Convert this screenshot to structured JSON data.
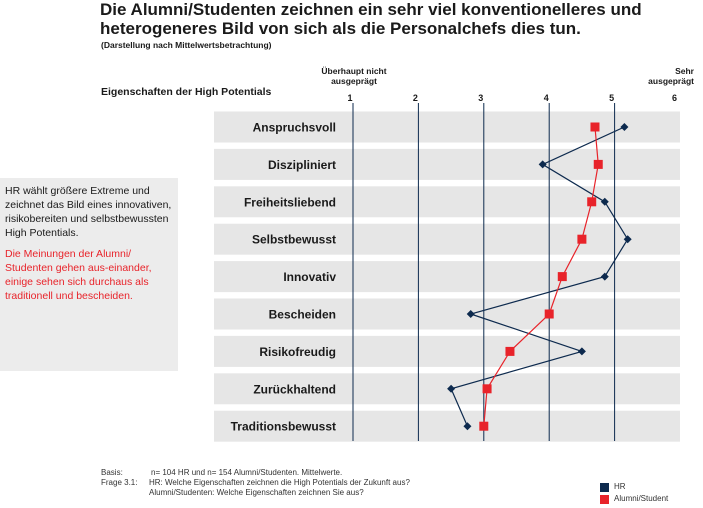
{
  "title": "Die Alumni/Studenten zeichnen ein sehr viel konventionelleres und heterogeneres Bild von sich als die Personalchefs dies tun.",
  "subtitle": "(Darstellung nach Mittelwertsbetrachtung)",
  "properties_label": "Eigenschaften der High Potentials",
  "axis_low_label": "Überhaupt nicht ausgeprägt",
  "axis_high_label": "Sehr ausgeprägt",
  "callout": {
    "hr_text": "HR wählt größere Extreme und zeichnet das Bild eines innovativen, risikobereiten und selbstbewussten High Potentials.",
    "alumni_text": "Die Meinungen der Alumni/ Studenten gehen aus-einander, einige sehen sich durchaus als traditionell und bescheiden."
  },
  "footer": {
    "basis_key": "Basis:",
    "basis_value": "n= 104 HR und n= 154 Alumni/Studenten. Mittelwerte.",
    "frage_key": "Frage  3.1:",
    "frage_hr": "HR: Welche Eigenschaften zeichnen die High Potentials der Zukunft aus?",
    "frage_alumni": "Alumni/Studenten: Welche Eigenschaften zeichnen Sie aus?"
  },
  "colors": {
    "hr": "#0d2a4e",
    "alumni": "#e8232a",
    "band": "#e6e6e6",
    "grid": "#0d2a4e"
  },
  "chart_data": {
    "type": "line",
    "orientation": "horizontal",
    "categories": [
      "Anspruchsvoll",
      "Diszipliniert",
      "Freiheitsliebend",
      "Selbstbewusst",
      "Innovativ",
      "Bescheiden",
      "Risikofreudig",
      "Zurückhaltend",
      "Traditionsbewusst"
    ],
    "xlim": [
      1,
      6
    ],
    "xticks": [
      1,
      2,
      3,
      4,
      5,
      6
    ],
    "grid": true,
    "legend_position": "bottom-right",
    "series": [
      {
        "name": "HR",
        "marker": "diamond",
        "values": [
          5.15,
          3.9,
          4.85,
          5.2,
          4.85,
          2.8,
          4.5,
          2.5,
          2.75
        ]
      },
      {
        "name": "Alumni/Student",
        "marker": "square",
        "values": [
          4.7,
          4.75,
          4.65,
          4.5,
          4.2,
          4.0,
          3.4,
          3.05,
          3.0
        ]
      }
    ]
  }
}
